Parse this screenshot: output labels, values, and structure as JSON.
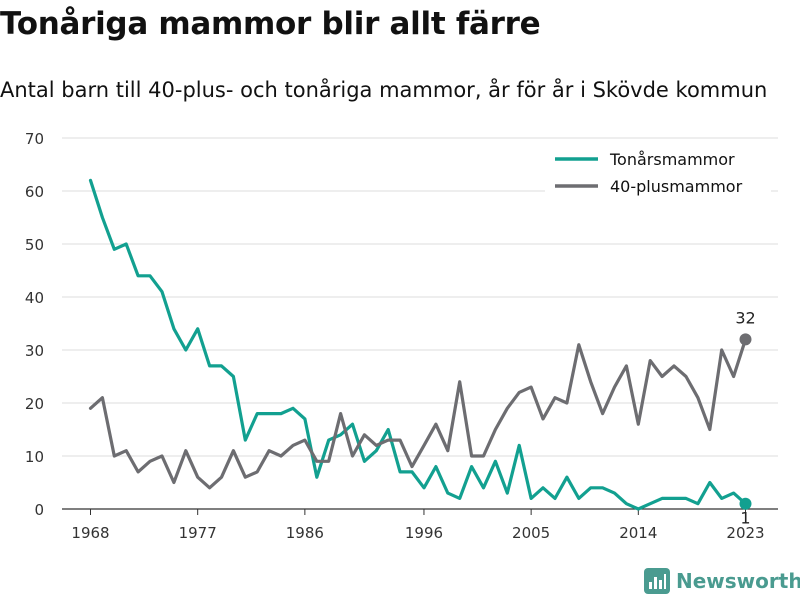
{
  "title": "Tonåriga mammor blir allt färre",
  "subtitle": "Antal barn till 40-plus- och tonåriga mammor, år för år i Skövde kommun",
  "brand": {
    "name": "Newsworthy",
    "icon": "newsworthy-logo-icon",
    "color": "#4a9b90"
  },
  "colors": {
    "teen": "#12a090",
    "forty": "#6d6d71",
    "grid": "#dddddd",
    "axis": "#333333"
  },
  "chart_data": {
    "type": "line",
    "x": [
      1968,
      1969,
      1970,
      1971,
      1972,
      1973,
      1974,
      1975,
      1976,
      1977,
      1978,
      1979,
      1980,
      1981,
      1982,
      1983,
      1984,
      1985,
      1986,
      1987,
      1988,
      1989,
      1990,
      1991,
      1992,
      1993,
      1994,
      1995,
      1996,
      1997,
      1998,
      1999,
      2000,
      2001,
      2002,
      2003,
      2004,
      2005,
      2006,
      2007,
      2008,
      2009,
      2010,
      2011,
      2012,
      2013,
      2014,
      2015,
      2016,
      2017,
      2018,
      2019,
      2020,
      2021,
      2022,
      2023
    ],
    "series": [
      {
        "name": "Tonårsmammor",
        "color": "#12a090",
        "values": [
          62,
          55,
          49,
          50,
          44,
          44,
          41,
          34,
          30,
          34,
          27,
          27,
          25,
          13,
          18,
          18,
          18,
          19,
          17,
          6,
          13,
          14,
          16,
          9,
          11,
          15,
          7,
          7,
          4,
          8,
          3,
          2,
          8,
          4,
          9,
          3,
          12,
          2,
          4,
          2,
          6,
          2,
          4,
          4,
          3,
          1,
          0,
          1,
          2,
          2,
          2,
          1,
          5,
          2,
          3,
          1
        ]
      },
      {
        "name": "40-plusmammor",
        "color": "#6d6d71",
        "values": [
          19,
          21,
          10,
          11,
          7,
          9,
          10,
          5,
          11,
          6,
          4,
          6,
          11,
          6,
          7,
          11,
          10,
          12,
          13,
          9,
          9,
          18,
          10,
          14,
          12,
          13,
          13,
          8,
          12,
          16,
          11,
          24,
          10,
          10,
          15,
          19,
          22,
          23,
          17,
          21,
          20,
          31,
          24,
          18,
          23,
          27,
          16,
          28,
          25,
          27,
          25,
          21,
          15,
          30,
          25,
          32
        ]
      }
    ],
    "end_labels": {
      "Tonårsmammor": "1",
      "40-plusmammor": "32"
    },
    "x_ticks": [
      1968,
      1977,
      1986,
      1996,
      2005,
      2014,
      2023
    ],
    "y_ticks": [
      0,
      10,
      20,
      30,
      40,
      50,
      60,
      70
    ],
    "ylim": [
      0,
      70
    ],
    "xlim": [
      1968,
      2023
    ],
    "xlabel": "",
    "ylabel": "",
    "grid": true,
    "legend": "top-right"
  }
}
